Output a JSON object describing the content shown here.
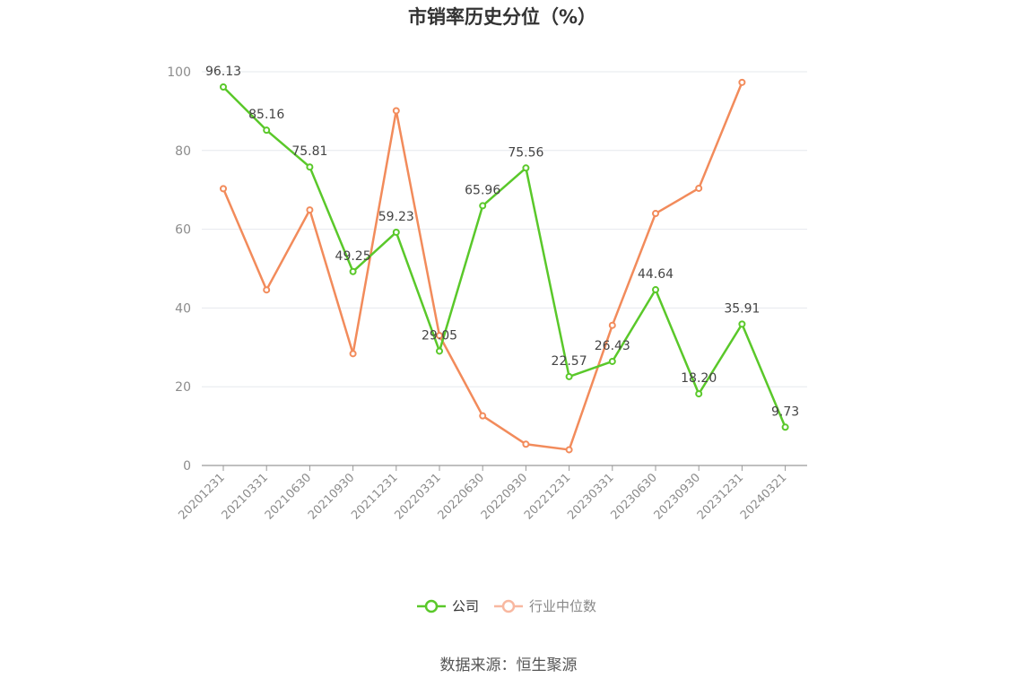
{
  "chart_data": {
    "type": "line",
    "title": "市销率历史分位（%）",
    "x": [
      "20201231",
      "20210331",
      "20210630",
      "20210930",
      "20211231",
      "20220331",
      "20220630",
      "20220930",
      "20221231",
      "20230331",
      "20230630",
      "20230930",
      "20231231",
      "20240321"
    ],
    "series": [
      {
        "name": "公司",
        "color": "#5ac82a",
        "values": [
          96.13,
          85.16,
          75.81,
          49.25,
          59.23,
          29.05,
          65.96,
          75.56,
          22.57,
          26.43,
          44.64,
          18.2,
          35.91,
          9.73
        ],
        "labels": [
          "96.13",
          "85.16",
          "75.81",
          "49.25",
          "59.23",
          "29.05",
          "65.96",
          "75.56",
          "22.57",
          "26.43",
          "44.64",
          "18.20",
          "35.91",
          "9.73"
        ]
      },
      {
        "name": "行业中位数",
        "color": "#f28b5b",
        "values": [
          70.3,
          44.6,
          64.9,
          28.4,
          90.1,
          33.0,
          12.6,
          5.4,
          4.0,
          35.6,
          64.0,
          70.4,
          97.3,
          null
        ]
      }
    ],
    "yticks": [
      "0",
      "20",
      "40",
      "60",
      "80",
      "100"
    ],
    "ylim": [
      0,
      100
    ],
    "grid": true,
    "legend": "bottom-center",
    "legend_colors": {
      "公司": "#5ac82a",
      "行业中位数": "#f8b8a0"
    },
    "legend_text_colors": {
      "公司": "#333333",
      "行业中位数": "#888888"
    }
  },
  "source": "数据来源：恒生聚源"
}
